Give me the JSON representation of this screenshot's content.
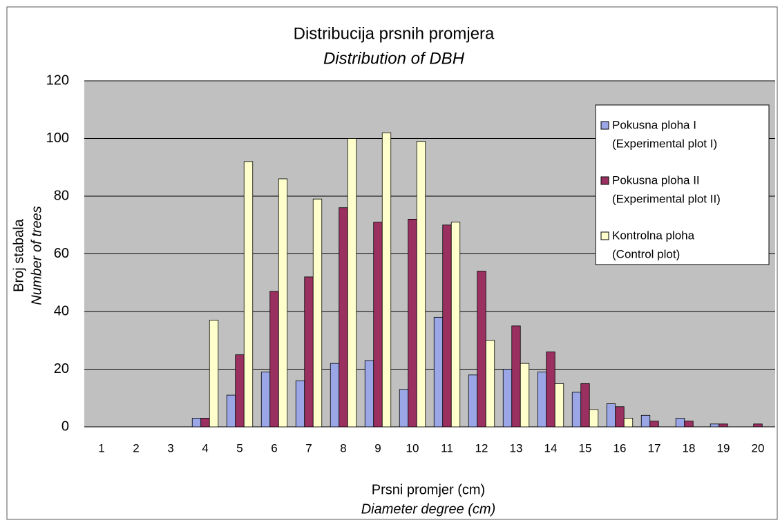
{
  "chart_data": {
    "type": "bar",
    "title": "Distribucija prsnih promjera",
    "subtitle": "Distribution of DBH",
    "ylabel": [
      "Broj stabala",
      "Number of trees"
    ],
    "xlabel": [
      "Prsni promjer (cm)",
      "Diameter degree (cm)"
    ],
    "categories": [
      "1",
      "2",
      "3",
      "4",
      "5",
      "6",
      "7",
      "8",
      "9",
      "10",
      "11",
      "12",
      "13",
      "14",
      "15",
      "16",
      "17",
      "18",
      "19",
      "20"
    ],
    "series": [
      {
        "name": [
          "Pokusna ploha I",
          "(Experimental plot  I)"
        ],
        "color": "#9aa6e6",
        "values": [
          0,
          0,
          0,
          3,
          11,
          19,
          16,
          22,
          23,
          13,
          38,
          18,
          20,
          19,
          12,
          8,
          4,
          3,
          1,
          0
        ]
      },
      {
        "name": [
          "Pokusna ploha II",
          "(Experimental plot  II)"
        ],
        "color": "#99305f",
        "values": [
          0,
          0,
          0,
          3,
          25,
          47,
          52,
          76,
          71,
          72,
          70,
          54,
          35,
          26,
          15,
          7,
          2,
          2,
          1,
          1
        ]
      },
      {
        "name": [
          "Kontrolna ploha",
          "(Control plot)"
        ],
        "color": "#ffffcc",
        "values": [
          0,
          0,
          0,
          37,
          92,
          86,
          79,
          100,
          102,
          99,
          71,
          30,
          22,
          15,
          6,
          3,
          0,
          0,
          0,
          0
        ]
      }
    ],
    "ylim": [
      0,
      120
    ],
    "yticks": [
      0,
      20,
      40,
      60,
      80,
      100,
      120
    ],
    "grid": true,
    "legend": "upper right"
  }
}
